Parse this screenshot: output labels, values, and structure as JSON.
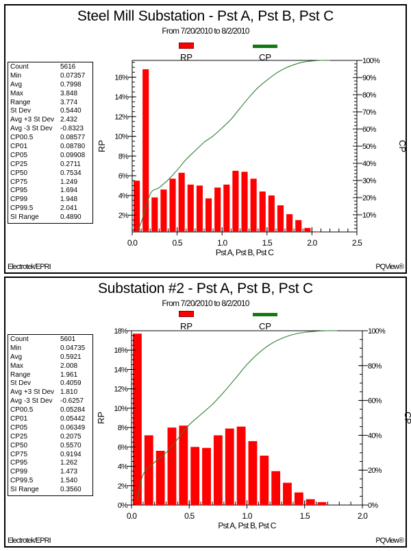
{
  "chart_data": [
    {
      "type": "bar",
      "title": "Steel Mill Substation - Pst A, Pst B, Pst C",
      "subtitle": "From 7/20/2010 to 8/2/2010",
      "xlabel": "Pst A, Pst B, Pst C",
      "ylabel": "RP",
      "y2label": "CP",
      "legend": [
        "RP",
        "CP"
      ],
      "legend_placement": "top",
      "xlim": [
        0,
        2.5
      ],
      "ylim": [
        0.3,
        17.7
      ],
      "y2lim": [
        0,
        100
      ],
      "x_ticks": [
        "0.0",
        "0.5",
        "1.0",
        "1.5",
        "2.0",
        "2.5"
      ],
      "x_tick_values": [
        0,
        0.5,
        1.0,
        1.5,
        2.0,
        2.5
      ],
      "y_ticks": [
        "2%",
        "4%",
        "6%",
        "8%",
        "10%",
        "12%",
        "14%",
        "16%"
      ],
      "y_tick_values": [
        2,
        4,
        6,
        8,
        10,
        12,
        14,
        16
      ],
      "y2_ticks": [
        "10%",
        "20%",
        "30%",
        "40%",
        "50%",
        "60%",
        "70%",
        "80%",
        "90%",
        "100%"
      ],
      "y2_tick_values": [
        10,
        20,
        30,
        40,
        50,
        60,
        70,
        80,
        90,
        100
      ],
      "bin_width": 0.1,
      "x": [
        0.05,
        0.15,
        0.25,
        0.35,
        0.45,
        0.55,
        0.65,
        0.75,
        0.85,
        0.95,
        1.05,
        1.15,
        1.25,
        1.35,
        1.45,
        1.55,
        1.65,
        1.75,
        1.85,
        1.95,
        2.05
      ],
      "series": [
        {
          "name": "RP",
          "type": "bar",
          "color": "#ff0000",
          "values": [
            5.5,
            16.8,
            3.8,
            4.6,
            5.7,
            6.3,
            5.1,
            5.0,
            3.7,
            4.8,
            5.1,
            6.5,
            6.4,
            5.7,
            4.4,
            4.0,
            3.0,
            2.1,
            1.5,
            0.7,
            0.35
          ]
        },
        {
          "name": "CP",
          "type": "line",
          "color": "#2e7d32",
          "axis": "right",
          "derived": "cumulative of RP"
        }
      ],
      "stats": [
        {
          "label": "Count",
          "value": "5616"
        },
        {
          "label": "Min",
          "value": "0.07357"
        },
        {
          "label": "Avg",
          "value": "0.7998"
        },
        {
          "label": "Max",
          "value": "3.848"
        },
        {
          "label": "Range",
          "value": "3.774"
        },
        {
          "label": "St Dev",
          "value": "0.5440"
        },
        {
          "label": "Avg +3 St Dev",
          "value": "2.432"
        },
        {
          "label": "Avg -3 St Dev",
          "value": "-0.8323"
        },
        {
          "label": "CP00.5",
          "value": "0.08577"
        },
        {
          "label": "CP01",
          "value": "0.08780"
        },
        {
          "label": "CP05",
          "value": "0.09908"
        },
        {
          "label": "CP25",
          "value": "0.2711"
        },
        {
          "label": "CP50",
          "value": "0.7534"
        },
        {
          "label": "CP75",
          "value": "1.249"
        },
        {
          "label": "CP95",
          "value": "1.694"
        },
        {
          "label": "CP99",
          "value": "1.948"
        },
        {
          "label": "CP99.5",
          "value": "2.041"
        },
        {
          "label": "SI Range",
          "value": "0.4890"
        }
      ],
      "footer_left": "Electrotek/EPRI",
      "footer_right": "PQView®"
    },
    {
      "type": "bar",
      "title": "Substation #2 - Pst A, Pst B, Pst C",
      "subtitle": "From 7/20/2010 to 8/2/2010",
      "xlabel": "Pst A, Pst B, Pst C",
      "ylabel": "RP",
      "y2label": "CP",
      "legend": [
        "RP",
        "CP"
      ],
      "legend_placement": "top",
      "xlim": [
        0,
        2.0
      ],
      "ylim": [
        0,
        18
      ],
      "y2lim": [
        0,
        100
      ],
      "x_ticks": [
        "0.0",
        "0.5",
        "1.0",
        "1.5",
        "2.0"
      ],
      "x_tick_values": [
        0,
        0.5,
        1.0,
        1.5,
        2.0
      ],
      "y_ticks": [
        "0%",
        "2%",
        "4%",
        "6%",
        "8%",
        "10%",
        "12%",
        "14%",
        "16%",
        "18%"
      ],
      "y_tick_values": [
        0,
        2,
        4,
        6,
        8,
        10,
        12,
        14,
        16,
        18
      ],
      "y2_ticks": [
        "0%",
        "20%",
        "40%",
        "60%",
        "80%",
        "100%"
      ],
      "y2_tick_values": [
        0,
        20,
        40,
        60,
        80,
        100
      ],
      "bin_width": 0.1,
      "x": [
        0.05,
        0.15,
        0.25,
        0.35,
        0.45,
        0.55,
        0.65,
        0.75,
        0.85,
        0.95,
        1.05,
        1.15,
        1.25,
        1.35,
        1.45,
        1.55,
        1.65
      ],
      "series": [
        {
          "name": "RP",
          "type": "bar",
          "color": "#ff0000",
          "values": [
            17.7,
            7.2,
            5.6,
            8.0,
            8.2,
            6.0,
            5.9,
            7.2,
            7.9,
            8.1,
            6.6,
            5.1,
            3.5,
            2.3,
            1.3,
            0.6,
            0.3
          ]
        },
        {
          "name": "CP",
          "type": "line",
          "color": "#2e7d32",
          "axis": "right",
          "derived": "cumulative of RP"
        }
      ],
      "stats": [
        {
          "label": "Count",
          "value": "5601"
        },
        {
          "label": "Min",
          "value": "0.04735"
        },
        {
          "label": "Avg",
          "value": "0.5921"
        },
        {
          "label": "Max",
          "value": "2.008"
        },
        {
          "label": "Range",
          "value": "1.961"
        },
        {
          "label": "St Dev",
          "value": "0.4059"
        },
        {
          "label": "Avg +3 St Dev",
          "value": "1.810"
        },
        {
          "label": "Avg -3 St Dev",
          "value": "-0.6257"
        },
        {
          "label": "CP00.5",
          "value": "0.05284"
        },
        {
          "label": "CP01",
          "value": "0.05442"
        },
        {
          "label": "CP05",
          "value": "0.06349"
        },
        {
          "label": "CP25",
          "value": "0.2075"
        },
        {
          "label": "CP50",
          "value": "0.5570"
        },
        {
          "label": "CP75",
          "value": "0.9194"
        },
        {
          "label": "CP95",
          "value": "1.262"
        },
        {
          "label": "CP99",
          "value": "1.473"
        },
        {
          "label": "CP99.5",
          "value": "1.540"
        },
        {
          "label": "SI Range",
          "value": "0.3560"
        }
      ],
      "footer_left": "Electrotek/EPRI",
      "footer_right": "PQView®"
    }
  ]
}
